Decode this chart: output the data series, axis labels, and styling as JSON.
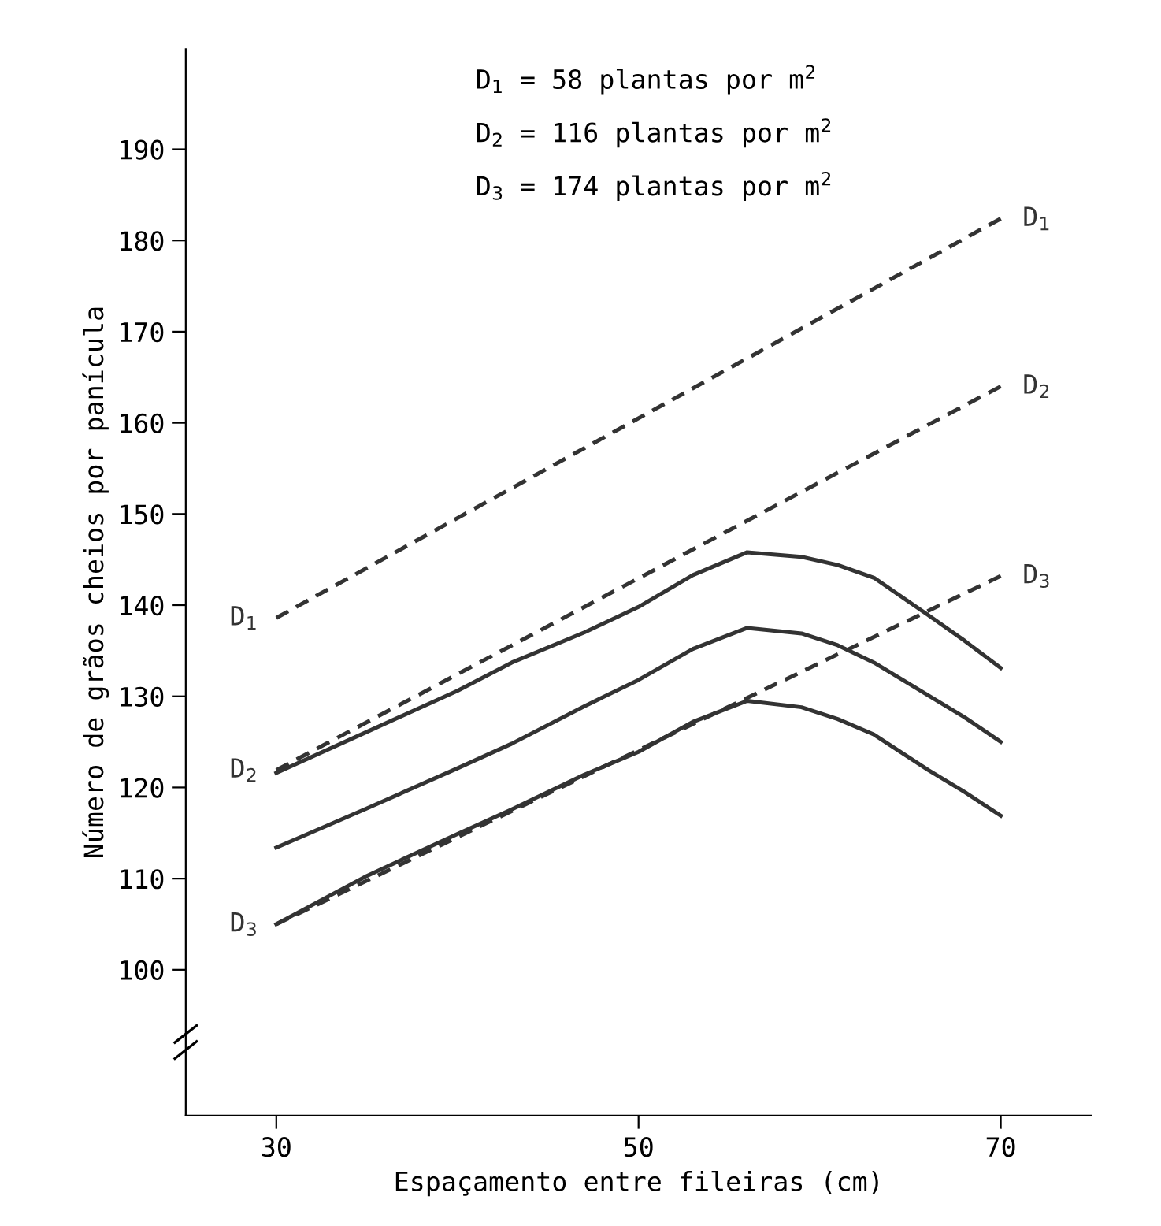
{
  "chart_data": {
    "type": "line",
    "xlabel": "Espaçamento entre fileiras (cm)",
    "ylabel": "Número de grãos cheios por panícula",
    "xlim": [
      25,
      75
    ],
    "xticks": [
      30,
      50,
      70
    ],
    "ylim": [
      84,
      201
    ],
    "yticks": [
      100,
      110,
      120,
      130,
      140,
      150,
      160,
      170,
      180,
      190
    ],
    "grid": false,
    "legend": false,
    "marker": "none",
    "annotations": [
      "D$_{1}$ = 58 plantas por m$^{2}$",
      "D$_{2}$ = 116 plantas por m$^{2}$",
      "D$_{3}$ = 174 plantas por m$^{2}$"
    ],
    "series": [
      {
        "name": "D$_{1}$",
        "color": "#333333",
        "line_style": "dashed",
        "x": [
          30,
          70
        ],
        "values": [
          138.6,
          182.4
        ]
      },
      {
        "name": "D$_{2}$",
        "color": "#333333",
        "line_style": "dashed",
        "x": [
          30,
          70
        ],
        "values": [
          121.9,
          164.0
        ]
      },
      {
        "name": "D$_{3}$",
        "color": "#333333",
        "line_style": "dashed",
        "x": [
          30,
          70
        ],
        "values": [
          105.0,
          143.2
        ]
      },
      {
        "color": "#333333",
        "line_style": "solid",
        "x": [
          30,
          35,
          40,
          43,
          47,
          50,
          53,
          56,
          59,
          61,
          63,
          66,
          68,
          70
        ],
        "values": [
          121.6,
          126.1,
          130.6,
          133.7,
          137.0,
          139.8,
          143.3,
          145.8,
          145.3,
          144.4,
          143.0,
          138.9,
          136.1,
          133.1
        ]
      },
      {
        "color": "#333333",
        "line_style": "solid",
        "x": [
          30,
          35,
          40,
          43,
          47,
          50,
          53,
          56,
          59,
          61,
          63,
          66,
          68,
          70
        ],
        "values": [
          113.4,
          117.7,
          122.1,
          124.8,
          128.9,
          131.8,
          135.2,
          137.5,
          136.9,
          135.6,
          133.7,
          130.1,
          127.7,
          125.0
        ]
      },
      {
        "color": "#333333",
        "line_style": "solid",
        "x": [
          30,
          35,
          40,
          43,
          47,
          50,
          53,
          56,
          59,
          61,
          63,
          66,
          68,
          70
        ],
        "values": [
          105.0,
          110.3,
          114.9,
          117.6,
          121.4,
          123.9,
          127.2,
          129.5,
          128.8,
          127.5,
          125.8,
          121.9,
          119.5,
          116.9
        ]
      }
    ]
  }
}
